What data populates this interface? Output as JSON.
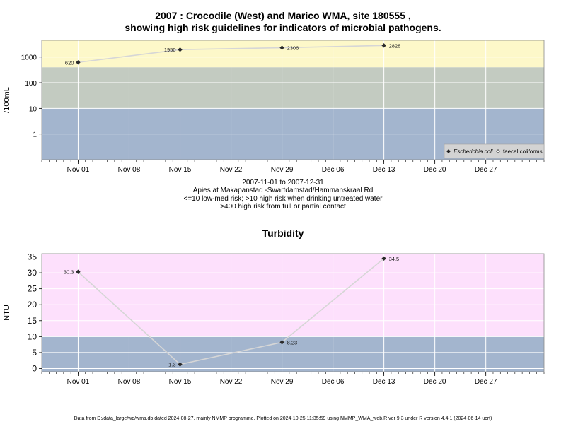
{
  "title_line1": "2007 : Crocodile (West) and Marico WMA, site 180555 ,",
  "title_line2": "showing high risk guidelines for indicators of microbial pathogens.",
  "info_lines": [
    "2007-11-01 to 2007-12-31",
    "Apies at Makapanstad -Swartdamstad/Hammanskraal Rd",
    "<=10 low-med risk; >10 high risk when drinking untreated water",
    ">400 high risk from full or partial contact"
  ],
  "footer": "Data from D:/data_large/wq/wms.db dated 2024-08-27, mainly NMMP programme. Plotted on 2024-10-25 11:35:59 using NMMP_WMA_web.R ver 9.3 under R version 4.4.1 (2024-06-14 ucrt)",
  "colors": {
    "band_low": "#a3b5ce",
    "band_mid": "#c3cbc1",
    "band_high": "#fdf8c9",
    "band_turb_high": "#fde0fc",
    "line": "#d6d6d6",
    "point": "#2a2a2a",
    "grid": "#ffffff"
  },
  "chart_data": [
    {
      "type": "line",
      "title": "",
      "xlabel": "",
      "ylabel": "/100mL",
      "y_scale": "log10",
      "ylim": [
        0.1,
        4500
      ],
      "x_range": [
        "2007-10-27",
        "2008-01-04"
      ],
      "x_ticks": [
        "2007-11-01",
        "2007-11-08",
        "2007-11-15",
        "2007-11-22",
        "2007-11-29",
        "2007-12-06",
        "2007-12-13",
        "2007-12-20",
        "2007-12-27"
      ],
      "x_tick_labels": [
        "Nov 01",
        "Nov 08",
        "Nov 15",
        "Nov 22",
        "Nov 29",
        "Dec 06",
        "Dec 13",
        "Dec 20",
        "Dec 27"
      ],
      "y_ticks": [
        1,
        10,
        100,
        1000
      ],
      "y_tick_labels": [
        "1",
        "10",
        "100",
        "1000"
      ],
      "bands": [
        {
          "from": 0.1,
          "to": 10,
          "color": "#a3b5ce"
        },
        {
          "from": 10,
          "to": 400,
          "color": "#c3cbc1"
        },
        {
          "from": 400,
          "to": 4500,
          "color": "#fdf8c9"
        }
      ],
      "legend_position": "bottom-right",
      "legend": [
        {
          "marker": "filled-diamond",
          "label": "Escherichia coli",
          "italic": true
        },
        {
          "marker": "open-diamond",
          "label": "faecal coliforms",
          "italic": false
        }
      ],
      "series": [
        {
          "name": "Escherichia coli",
          "x": [
            "2007-11-01",
            "2007-11-15",
            "2007-11-29",
            "2007-12-13"
          ],
          "values": [
            620,
            1950,
            2306,
            2828
          ],
          "labels": [
            "620",
            "1950",
            "2306",
            "2828"
          ],
          "label_side": [
            "left",
            "left",
            "right",
            "right"
          ]
        }
      ]
    },
    {
      "type": "line",
      "title": "Turbidity",
      "xlabel": "",
      "ylabel": "NTU",
      "y_scale": "linear",
      "ylim": [
        -1,
        36
      ],
      "x_range": [
        "2007-10-27",
        "2008-01-04"
      ],
      "x_ticks": [
        "2007-11-01",
        "2007-11-08",
        "2007-11-15",
        "2007-11-22",
        "2007-11-29",
        "2007-12-06",
        "2007-12-13",
        "2007-12-20",
        "2007-12-27"
      ],
      "x_tick_labels": [
        "Nov 01",
        "Nov 08",
        "Nov 15",
        "Nov 22",
        "Nov 29",
        "Dec 06",
        "Dec 13",
        "Dec 20",
        "Dec 27"
      ],
      "y_ticks": [
        0,
        5,
        10,
        15,
        20,
        25,
        30,
        35
      ],
      "y_tick_labels": [
        "0",
        "5",
        "10",
        "15",
        "20",
        "25",
        "30",
        "35"
      ],
      "bands": [
        {
          "from": -1,
          "to": 10,
          "color": "#a3b5ce"
        },
        {
          "from": 10,
          "to": 36,
          "color": "#fde0fc"
        }
      ],
      "series": [
        {
          "name": "",
          "x": [
            "2007-11-01",
            "2007-11-15",
            "2007-11-29",
            "2007-12-13"
          ],
          "values": [
            30.3,
            1.3,
            8.23,
            34.5
          ],
          "labels": [
            "30.3",
            "1.3",
            "8.23",
            "34.5"
          ],
          "label_side": [
            "left",
            "left",
            "right",
            "right"
          ]
        }
      ]
    }
  ]
}
